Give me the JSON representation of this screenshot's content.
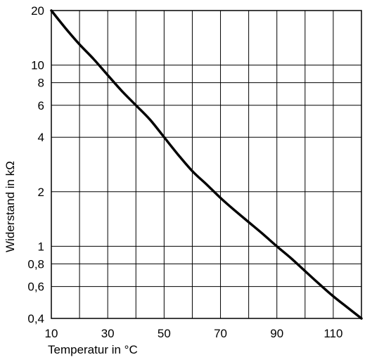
{
  "chart_data": {
    "type": "line",
    "xlabel": "Temperatur in °C",
    "ylabel": "Widerstand in kΩ",
    "yscale": "log",
    "xlim": [
      10,
      120
    ],
    "ylim": [
      0.4,
      20
    ],
    "grid": true,
    "x_ticks": [
      {
        "value": 10,
        "label": "10"
      },
      {
        "value": 30,
        "label": "30"
      },
      {
        "value": 50,
        "label": "50"
      },
      {
        "value": 70,
        "label": "70"
      },
      {
        "value": 90,
        "label": "90"
      },
      {
        "value": 110,
        "label": "110"
      }
    ],
    "x_gridlines": [
      10,
      20,
      30,
      40,
      50,
      60,
      70,
      80,
      90,
      100,
      110,
      120
    ],
    "y_ticks": [
      {
        "value": 0.4,
        "label": "0,4"
      },
      {
        "value": 0.6,
        "label": "0,6"
      },
      {
        "value": 0.8,
        "label": "0,8"
      },
      {
        "value": 1,
        "label": "1"
      },
      {
        "value": 2,
        "label": "2"
      },
      {
        "value": 4,
        "label": "4"
      },
      {
        "value": 6,
        "label": "6"
      },
      {
        "value": 8,
        "label": "8"
      },
      {
        "value": 10,
        "label": "10"
      },
      {
        "value": 20,
        "label": "20"
      }
    ],
    "series": [
      {
        "color": "#000000",
        "x": [
          10,
          15,
          20,
          25,
          30,
          35,
          40,
          45,
          50,
          55,
          60,
          65,
          70,
          75,
          80,
          85,
          90,
          95,
          100,
          105,
          110,
          115,
          120
        ],
        "y": [
          20,
          16,
          13,
          10.8,
          8.8,
          7.2,
          6.0,
          5.0,
          4.0,
          3.2,
          2.6,
          2.2,
          1.85,
          1.58,
          1.36,
          1.17,
          1.0,
          0.86,
          0.73,
          0.62,
          0.53,
          0.46,
          0.4
        ]
      }
    ]
  }
}
